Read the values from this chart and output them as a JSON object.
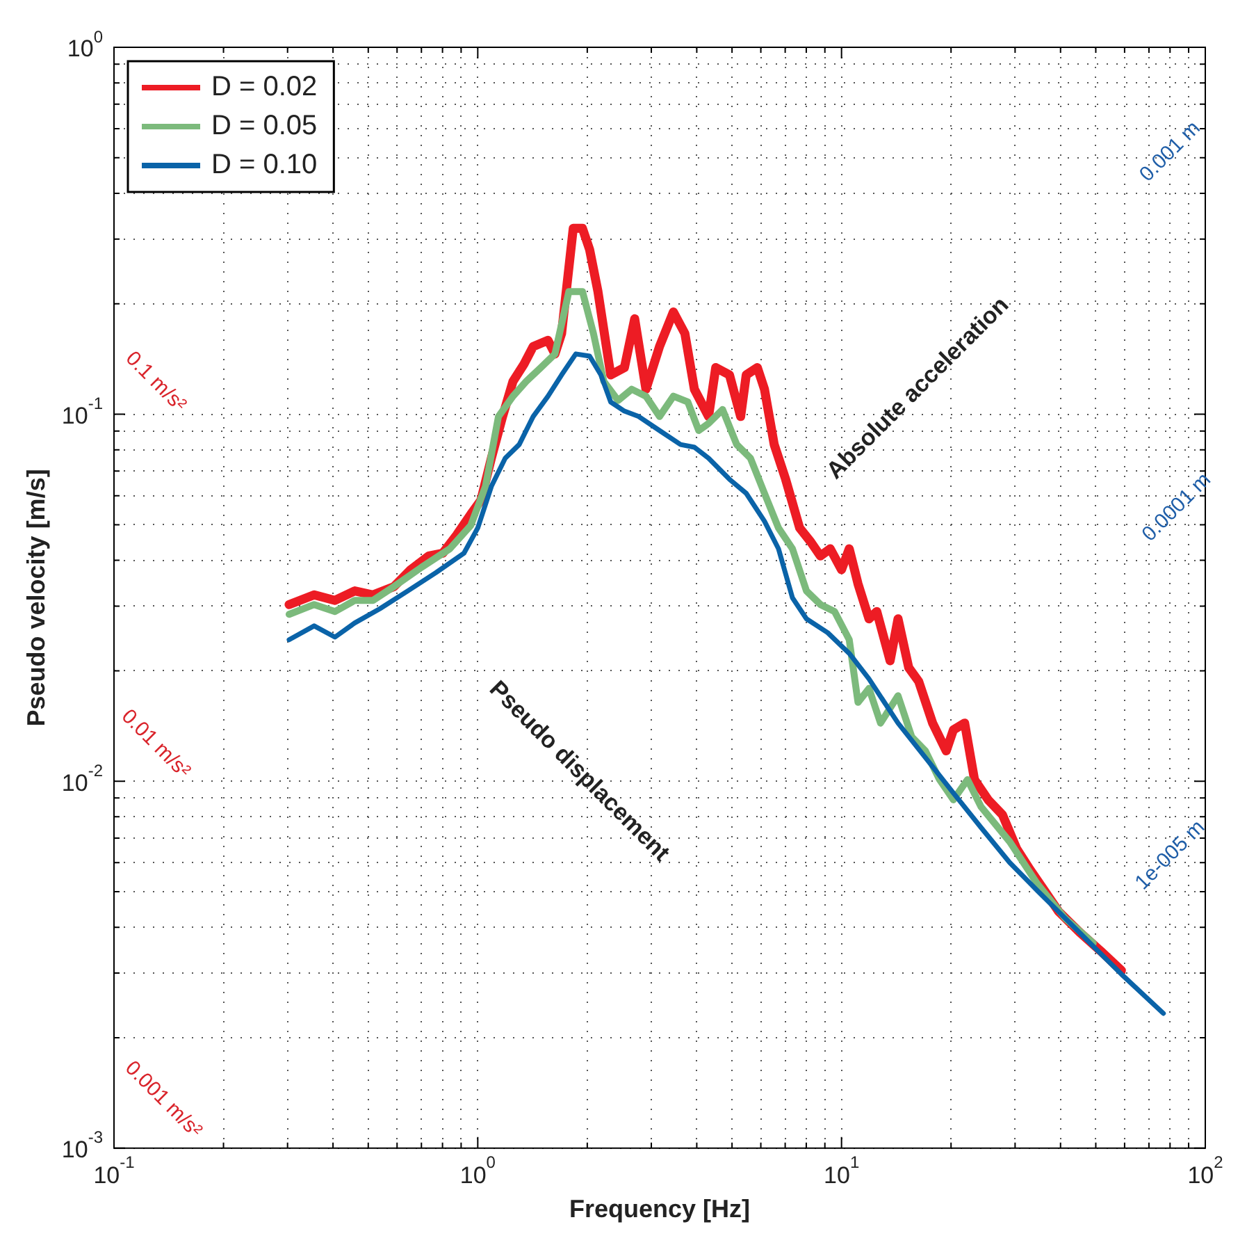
{
  "chart_data": {
    "type": "line",
    "xlabel": "Frequency [Hz]",
    "ylabel": "Pseudo velocity [m/s]",
    "log": "xy",
    "grid": true,
    "legend": "top left",
    "marker": "none",
    "line_style": "solid",
    "xlim": [
      0.1,
      100
    ],
    "ylim": [
      0.001,
      1
    ],
    "xticks": [
      {
        "value": 0.1,
        "label": "10$^{-1}$"
      },
      {
        "value": 0.2,
        "label": null
      },
      {
        "value": 0.3,
        "label": null
      },
      {
        "value": 0.4,
        "label": null
      },
      {
        "value": 0.5,
        "label": null
      },
      {
        "value": 0.6,
        "label": null
      },
      {
        "value": 0.7,
        "label": null
      },
      {
        "value": 0.8,
        "label": null
      },
      {
        "value": 0.9,
        "label": null
      },
      {
        "value": 1,
        "label": "10$^{0}$"
      },
      {
        "value": 2,
        "label": null
      },
      {
        "value": 3,
        "label": null
      },
      {
        "value": 4,
        "label": null
      },
      {
        "value": 5,
        "label": null
      },
      {
        "value": 6,
        "label": null
      },
      {
        "value": 7,
        "label": null
      },
      {
        "value": 8,
        "label": null
      },
      {
        "value": 9,
        "label": null
      },
      {
        "value": 10,
        "label": "10$^{1}$"
      },
      {
        "value": 20,
        "label": null
      },
      {
        "value": 30,
        "label": null
      },
      {
        "value": 40,
        "label": null
      },
      {
        "value": 50,
        "label": null
      },
      {
        "value": 60,
        "label": null
      },
      {
        "value": 70,
        "label": null
      },
      {
        "value": 80,
        "label": null
      },
      {
        "value": 90,
        "label": null
      },
      {
        "value": 100,
        "label": "10$^{2}$"
      }
    ],
    "yticks": [
      {
        "value": 0.001,
        "label": "10$^{-3}$"
      },
      {
        "value": 0.002,
        "label": null
      },
      {
        "value": 0.003,
        "label": null
      },
      {
        "value": 0.004,
        "label": null
      },
      {
        "value": 0.005,
        "label": null
      },
      {
        "value": 0.006,
        "label": null
      },
      {
        "value": 0.007,
        "label": null
      },
      {
        "value": 0.008,
        "label": null
      },
      {
        "value": 0.009,
        "label": null
      },
      {
        "value": 0.01,
        "label": "10$^{-2}$"
      },
      {
        "value": 0.02,
        "label": null
      },
      {
        "value": 0.03,
        "label": null
      },
      {
        "value": 0.04,
        "label": null
      },
      {
        "value": 0.05,
        "label": null
      },
      {
        "value": 0.06,
        "label": null
      },
      {
        "value": 0.07,
        "label": null
      },
      {
        "value": 0.08,
        "label": null
      },
      {
        "value": 0.09,
        "label": null
      },
      {
        "value": 0.1,
        "label": "10$^{-1}$"
      },
      {
        "value": 0.2,
        "label": null
      },
      {
        "value": 0.3,
        "label": null
      },
      {
        "value": 0.4,
        "label": null
      },
      {
        "value": 0.5,
        "label": null
      },
      {
        "value": 0.6,
        "label": null
      },
      {
        "value": 0.7,
        "label": null
      },
      {
        "value": 0.8,
        "label": null
      },
      {
        "value": 0.9,
        "label": null
      },
      {
        "value": 1,
        "label": "10$^{0}$"
      }
    ],
    "series": [
      {
        "name": "D = 0.02",
        "color": "#ed1c24",
        "x": [
          0.303,
          0.355,
          0.405,
          0.459,
          0.515,
          0.588,
          0.654,
          0.733,
          0.801,
          0.875,
          0.957,
          1.02,
          1.09,
          1.17,
          1.25,
          1.34,
          1.42,
          1.56,
          1.63,
          1.7,
          1.83,
          1.94,
          2.03,
          2.14,
          2.32,
          2.53,
          2.7,
          2.9,
          3.16,
          3.45,
          3.71,
          3.94,
          4.31,
          4.51,
          4.92,
          5.28,
          5.47,
          5.87,
          6.14,
          6.53,
          7.02,
          7.67,
          8.23,
          8.75,
          9.31,
          10.0,
          10.5,
          11.1,
          11.9,
          12.5,
          13.6,
          14.3,
          15.3,
          16.3,
          17.8,
          19.4,
          20.3,
          21.8,
          23.2,
          25.3,
          27.7,
          30.3,
          33.0,
          36.1,
          39.5,
          45.1,
          51.5,
          58.8
        ],
        "values": [
          0.0303,
          0.0322,
          0.0311,
          0.033,
          0.0322,
          0.0339,
          0.0377,
          0.0411,
          0.0418,
          0.0469,
          0.0534,
          0.0583,
          0.0759,
          0.0986,
          0.123,
          0.137,
          0.153,
          0.159,
          0.146,
          0.166,
          0.321,
          0.321,
          0.281,
          0.216,
          0.128,
          0.134,
          0.182,
          0.117,
          0.153,
          0.19,
          0.166,
          0.117,
          0.0986,
          0.134,
          0.128,
          0.0986,
          0.128,
          0.134,
          0.117,
          0.0827,
          0.0665,
          0.049,
          0.0449,
          0.0411,
          0.043,
          0.0377,
          0.043,
          0.0345,
          0.0277,
          0.029,
          0.0213,
          0.0277,
          0.0204,
          0.0187,
          0.0144,
          0.0121,
          0.0138,
          0.0144,
          0.0101,
          0.0089,
          0.0081,
          0.00655,
          0.00574,
          0.00504,
          0.00442,
          0.00388,
          0.00345,
          0.00305
        ]
      },
      {
        "name": "D = 0.05",
        "color": "#7cba7c",
        "x": [
          0.303,
          0.355,
          0.405,
          0.459,
          0.515,
          0.588,
          0.701,
          0.838,
          0.957,
          1.05,
          1.14,
          1.25,
          1.36,
          1.49,
          1.63,
          1.78,
          1.94,
          2.08,
          2.22,
          2.43,
          2.65,
          2.9,
          3.16,
          3.45,
          3.78,
          4.05,
          4.31,
          4.71,
          5.15,
          5.62,
          6.14,
          6.71,
          7.33,
          8.01,
          8.75,
          9.57,
          10.5,
          11.1,
          11.9,
          12.8,
          14.3,
          15.6,
          17.0,
          18.6,
          20.3,
          22.2,
          24.2,
          29.0,
          34.5,
          41.2,
          49.2
        ],
        "values": [
          0.0285,
          0.0303,
          0.029,
          0.0311,
          0.0311,
          0.0339,
          0.0383,
          0.043,
          0.0498,
          0.0636,
          0.0986,
          0.112,
          0.123,
          0.134,
          0.146,
          0.216,
          0.216,
          0.166,
          0.123,
          0.109,
          0.117,
          0.112,
          0.0986,
          0.112,
          0.108,
          0.0903,
          0.0944,
          0.103,
          0.0827,
          0.0759,
          0.0609,
          0.049,
          0.043,
          0.033,
          0.0303,
          0.029,
          0.0243,
          0.0164,
          0.0179,
          0.0144,
          0.0171,
          0.0132,
          0.0121,
          0.0101,
          0.0089,
          0.0101,
          0.00851,
          0.00684,
          0.00526,
          0.00423,
          0.00362
        ]
      },
      {
        "name": "D = 0.10",
        "color": "#0a63a8",
        "x": [
          0.303,
          0.355,
          0.405,
          0.459,
          0.538,
          0.642,
          0.767,
          0.916,
          1.0,
          1.09,
          1.19,
          1.3,
          1.42,
          1.56,
          1.7,
          1.86,
          2.03,
          2.18,
          2.32,
          2.53,
          2.77,
          3.16,
          3.61,
          3.94,
          4.31,
          4.92,
          5.47,
          6.14,
          6.71,
          7.33,
          8.01,
          9.16,
          10.5,
          11.9,
          14.3,
          17.0,
          20.3,
          24.2,
          29.0,
          34.5,
          41.2,
          49.2,
          58.8,
          76.7
        ],
        "values": [
          0.0243,
          0.0265,
          0.0247,
          0.027,
          0.0295,
          0.033,
          0.037,
          0.0418,
          0.049,
          0.0636,
          0.0759,
          0.0827,
          0.0986,
          0.112,
          0.128,
          0.146,
          0.144,
          0.128,
          0.108,
          0.102,
          0.0986,
          0.0903,
          0.0827,
          0.0813,
          0.0759,
          0.0665,
          0.0609,
          0.0511,
          0.043,
          0.0316,
          0.0277,
          0.0254,
          0.0223,
          0.019,
          0.0144,
          0.0116,
          0.00929,
          0.00747,
          0.006,
          0.00504,
          0.00423,
          0.00355,
          0.00298,
          0.00233
        ]
      }
    ],
    "annotations": [
      "0.1 m/s²",
      "0.01 m/s²",
      "0.001 m/s²",
      "0.001 m",
      "0.0001 m",
      "1e-005 m",
      "Absolute acceleration",
      "Pseudo displacement"
    ]
  }
}
